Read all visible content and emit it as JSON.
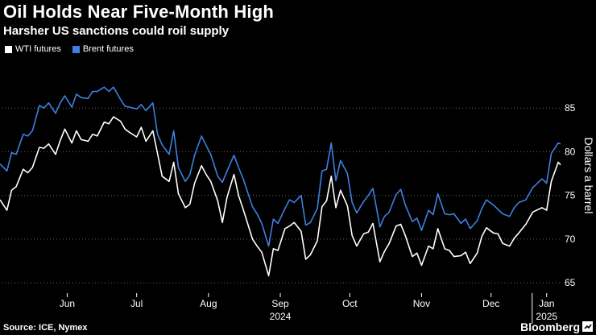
{
  "header": {
    "title": "Oil Holds Near Five-Month High",
    "subtitle": "Harsher US sanctions could roil supply"
  },
  "footer": {
    "source": "Source: ICE, Nymex",
    "brand": "Bloomberg"
  },
  "icons": {
    "brand_icon": "bloomberg-icon"
  },
  "colors": {
    "background": "#000000",
    "wti": "#ffffff",
    "brent": "#3f7fe0",
    "grid": "#666666"
  },
  "chart_data": {
    "type": "line",
    "ylabel": "Dollars a barrel",
    "ylim": [
      64,
      90
    ],
    "y_ticks": [
      65,
      70,
      75,
      80,
      85
    ],
    "y_axis_position": "right",
    "x_range": [
      "2024-05-17",
      "2025-01-14"
    ],
    "x_tick_labels": [
      {
        "label": "Jun",
        "date": "2024-06-15"
      },
      {
        "label": "Jul",
        "date": "2024-07-15"
      },
      {
        "label": "Aug",
        "date": "2024-08-15"
      },
      {
        "label": "Sep",
        "date": "2024-09-15",
        "year": "2024"
      },
      {
        "label": "Oct",
        "date": "2024-10-15"
      },
      {
        "label": "Nov",
        "date": "2024-11-15"
      },
      {
        "label": "Dec",
        "date": "2024-12-15"
      },
      {
        "label": "Jan",
        "date": "2025-01-08",
        "year": "2025"
      }
    ],
    "grid": "horizontal dotted",
    "legend": "top-left",
    "series": [
      {
        "name": "WTI futures",
        "color": "#ffffff",
        "points": [
          [
            "2024-05-17",
            74.5
          ],
          [
            "2024-05-20",
            73.3
          ],
          [
            "2024-05-22",
            75.6
          ],
          [
            "2024-05-24",
            76.0
          ],
          [
            "2024-05-27",
            78.0
          ],
          [
            "2024-05-29",
            77.6
          ],
          [
            "2024-05-31",
            78.2
          ],
          [
            "2024-06-03",
            80.5
          ],
          [
            "2024-06-05",
            80.4
          ],
          [
            "2024-06-07",
            80.9
          ],
          [
            "2024-06-10",
            79.7
          ],
          [
            "2024-06-12",
            81.3
          ],
          [
            "2024-06-14",
            82.6
          ],
          [
            "2024-06-17",
            81.0
          ],
          [
            "2024-06-19",
            82.4
          ],
          [
            "2024-06-21",
            81.4
          ],
          [
            "2024-06-24",
            81.2
          ],
          [
            "2024-06-26",
            82.0
          ],
          [
            "2024-06-28",
            81.8
          ],
          [
            "2024-07-01",
            83.4
          ],
          [
            "2024-07-03",
            83.2
          ],
          [
            "2024-07-05",
            84.0
          ],
          [
            "2024-07-08",
            83.5
          ],
          [
            "2024-07-10",
            82.6
          ],
          [
            "2024-07-12",
            82.2
          ],
          [
            "2024-07-15",
            81.7
          ],
          [
            "2024-07-17",
            82.8
          ],
          [
            "2024-07-19",
            81.2
          ],
          [
            "2024-07-22",
            82.4
          ],
          [
            "2024-07-24",
            79.8
          ],
          [
            "2024-07-26",
            77.2
          ],
          [
            "2024-07-29",
            76.6
          ],
          [
            "2024-07-31",
            78.8
          ],
          [
            "2024-08-02",
            75.2
          ],
          [
            "2024-08-05",
            73.6
          ],
          [
            "2024-08-07",
            74.0
          ],
          [
            "2024-08-09",
            76.4
          ],
          [
            "2024-08-12",
            78.4
          ],
          [
            "2024-08-14",
            77.4
          ],
          [
            "2024-08-16",
            76.6
          ],
          [
            "2024-08-19",
            74.4
          ],
          [
            "2024-08-21",
            71.9
          ],
          [
            "2024-08-23",
            74.8
          ],
          [
            "2024-08-26",
            77.4
          ],
          [
            "2024-08-28",
            75.0
          ],
          [
            "2024-08-30",
            73.4
          ],
          [
            "2024-09-03",
            70.0
          ],
          [
            "2024-09-05",
            69.2
          ],
          [
            "2024-09-07",
            68.5
          ],
          [
            "2024-09-10",
            65.8
          ],
          [
            "2024-09-12",
            68.9
          ],
          [
            "2024-09-14",
            68.7
          ],
          [
            "2024-09-17",
            71.2
          ],
          [
            "2024-09-19",
            71.5
          ],
          [
            "2024-09-21",
            71.9
          ],
          [
            "2024-09-24",
            70.9
          ],
          [
            "2024-09-26",
            67.7
          ],
          [
            "2024-09-28",
            68.2
          ],
          [
            "2024-10-01",
            69.8
          ],
          [
            "2024-10-03",
            73.7
          ],
          [
            "2024-10-05",
            74.4
          ],
          [
            "2024-10-07",
            77.2
          ],
          [
            "2024-10-09",
            73.6
          ],
          [
            "2024-10-11",
            75.6
          ],
          [
            "2024-10-14",
            73.8
          ],
          [
            "2024-10-16",
            70.4
          ],
          [
            "2024-10-18",
            69.2
          ],
          [
            "2024-10-21",
            70.6
          ],
          [
            "2024-10-23",
            70.8
          ],
          [
            "2024-10-25",
            71.8
          ],
          [
            "2024-10-28",
            67.4
          ],
          [
            "2024-10-30",
            68.6
          ],
          [
            "2024-11-01",
            69.5
          ],
          [
            "2024-11-04",
            71.5
          ],
          [
            "2024-11-06",
            71.7
          ],
          [
            "2024-11-08",
            70.4
          ],
          [
            "2024-11-11",
            68.0
          ],
          [
            "2024-11-13",
            68.4
          ],
          [
            "2024-11-15",
            67.0
          ],
          [
            "2024-11-18",
            69.2
          ],
          [
            "2024-11-20",
            68.9
          ],
          [
            "2024-11-22",
            71.2
          ],
          [
            "2024-11-25",
            68.9
          ],
          [
            "2024-11-27",
            68.7
          ],
          [
            "2024-11-29",
            68.0
          ],
          [
            "2024-12-02",
            68.1
          ],
          [
            "2024-12-04",
            68.5
          ],
          [
            "2024-12-06",
            67.2
          ],
          [
            "2024-12-09",
            68.4
          ],
          [
            "2024-12-11",
            70.3
          ],
          [
            "2024-12-13",
            71.3
          ],
          [
            "2024-12-16",
            70.7
          ],
          [
            "2024-12-18",
            70.6
          ],
          [
            "2024-12-20",
            69.5
          ],
          [
            "2024-12-23",
            69.2
          ],
          [
            "2024-12-25",
            70.1
          ],
          [
            "2024-12-27",
            70.7
          ],
          [
            "2024-12-30",
            71.7
          ],
          [
            "2025-01-02",
            73.1
          ],
          [
            "2025-01-06",
            73.6
          ],
          [
            "2025-01-08",
            73.3
          ],
          [
            "2025-01-10",
            76.6
          ],
          [
            "2025-01-13",
            78.8
          ],
          [
            "2025-01-14",
            78.5
          ]
        ]
      },
      {
        "name": "Brent futures",
        "color": "#3f7fe0",
        "points": [
          [
            "2024-05-17",
            78.6
          ],
          [
            "2024-05-20",
            77.8
          ],
          [
            "2024-05-22",
            79.9
          ],
          [
            "2024-05-24",
            79.7
          ],
          [
            "2024-05-27",
            82.0
          ],
          [
            "2024-05-29",
            81.8
          ],
          [
            "2024-05-31",
            82.4
          ],
          [
            "2024-06-03",
            85.3
          ],
          [
            "2024-06-05",
            85.0
          ],
          [
            "2024-06-07",
            85.6
          ],
          [
            "2024-06-10",
            84.4
          ],
          [
            "2024-06-12",
            85.6
          ],
          [
            "2024-06-14",
            86.4
          ],
          [
            "2024-06-17",
            85.1
          ],
          [
            "2024-06-19",
            86.6
          ],
          [
            "2024-06-21",
            86.2
          ],
          [
            "2024-06-24",
            86.1
          ],
          [
            "2024-06-26",
            86.9
          ],
          [
            "2024-06-28",
            86.9
          ],
          [
            "2024-07-01",
            87.4
          ],
          [
            "2024-07-03",
            86.9
          ],
          [
            "2024-07-05",
            87.4
          ],
          [
            "2024-07-08",
            86.0
          ],
          [
            "2024-07-10",
            85.2
          ],
          [
            "2024-07-12",
            85.1
          ],
          [
            "2024-07-15",
            84.9
          ],
          [
            "2024-07-17",
            85.4
          ],
          [
            "2024-07-19",
            84.7
          ],
          [
            "2024-07-22",
            85.6
          ],
          [
            "2024-07-24",
            82.0
          ],
          [
            "2024-07-26",
            80.8
          ],
          [
            "2024-07-29",
            79.7
          ],
          [
            "2024-07-31",
            82.4
          ],
          [
            "2024-08-02",
            78.2
          ],
          [
            "2024-08-05",
            76.6
          ],
          [
            "2024-08-07",
            77.4
          ],
          [
            "2024-08-09",
            79.6
          ],
          [
            "2024-08-12",
            81.8
          ],
          [
            "2024-08-14",
            80.7
          ],
          [
            "2024-08-16",
            79.7
          ],
          [
            "2024-08-19",
            77.2
          ],
          [
            "2024-08-21",
            76.5
          ],
          [
            "2024-08-23",
            77.8
          ],
          [
            "2024-08-26",
            79.6
          ],
          [
            "2024-08-28",
            78.2
          ],
          [
            "2024-08-30",
            76.9
          ],
          [
            "2024-09-03",
            73.7
          ],
          [
            "2024-09-05",
            72.9
          ],
          [
            "2024-09-07",
            71.8
          ],
          [
            "2024-09-10",
            69.2
          ],
          [
            "2024-09-12",
            72.3
          ],
          [
            "2024-09-14",
            71.8
          ],
          [
            "2024-09-17",
            73.5
          ],
          [
            "2024-09-19",
            74.5
          ],
          [
            "2024-09-21",
            74.2
          ],
          [
            "2024-09-24",
            75.0
          ],
          [
            "2024-09-26",
            71.6
          ],
          [
            "2024-09-28",
            71.9
          ],
          [
            "2024-10-01",
            73.5
          ],
          [
            "2024-10-03",
            77.8
          ],
          [
            "2024-10-05",
            78.0
          ],
          [
            "2024-10-07",
            81.0
          ],
          [
            "2024-10-09",
            76.7
          ],
          [
            "2024-10-11",
            79.0
          ],
          [
            "2024-10-14",
            77.5
          ],
          [
            "2024-10-16",
            74.2
          ],
          [
            "2024-10-18",
            73.0
          ],
          [
            "2024-10-21",
            74.3
          ],
          [
            "2024-10-23",
            75.0
          ],
          [
            "2024-10-25",
            75.8
          ],
          [
            "2024-10-28",
            71.4
          ],
          [
            "2024-10-30",
            72.6
          ],
          [
            "2024-11-01",
            73.1
          ],
          [
            "2024-11-04",
            75.1
          ],
          [
            "2024-11-06",
            75.7
          ],
          [
            "2024-11-08",
            73.9
          ],
          [
            "2024-11-11",
            72.0
          ],
          [
            "2024-11-13",
            72.4
          ],
          [
            "2024-11-15",
            71.0
          ],
          [
            "2024-11-18",
            73.3
          ],
          [
            "2024-11-20",
            72.8
          ],
          [
            "2024-11-22",
            75.2
          ],
          [
            "2024-11-25",
            72.9
          ],
          [
            "2024-11-27",
            72.8
          ],
          [
            "2024-11-29",
            72.9
          ],
          [
            "2024-12-02",
            71.8
          ],
          [
            "2024-12-04",
            72.3
          ],
          [
            "2024-12-06",
            71.2
          ],
          [
            "2024-12-09",
            72.1
          ],
          [
            "2024-12-11",
            73.5
          ],
          [
            "2024-12-13",
            74.5
          ],
          [
            "2024-12-16",
            73.9
          ],
          [
            "2024-12-18",
            73.4
          ],
          [
            "2024-12-20",
            72.9
          ],
          [
            "2024-12-23",
            72.6
          ],
          [
            "2024-12-25",
            73.6
          ],
          [
            "2024-12-27",
            74.2
          ],
          [
            "2024-12-30",
            74.5
          ],
          [
            "2025-01-02",
            75.9
          ],
          [
            "2025-01-06",
            76.9
          ],
          [
            "2025-01-08",
            76.4
          ],
          [
            "2025-01-10",
            79.8
          ],
          [
            "2025-01-13",
            81.0
          ],
          [
            "2025-01-14",
            80.9
          ]
        ]
      }
    ]
  }
}
